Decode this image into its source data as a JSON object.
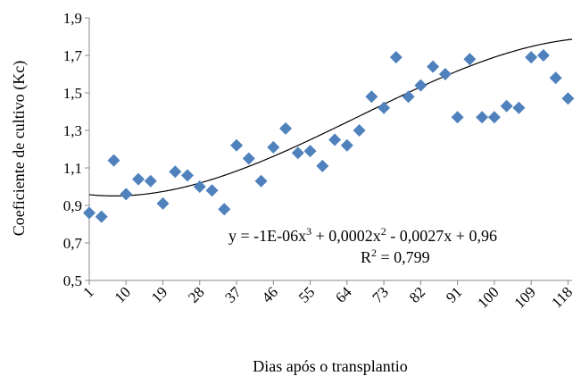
{
  "chart_data": {
    "type": "scatter",
    "title": "",
    "xlabel": "Dias após o transplantio",
    "ylabel": "Coeficiente de cultivo (Kc)",
    "x_ticks": [
      "1",
      "10",
      "19",
      "28",
      "37",
      "46",
      "55",
      "64",
      "73",
      "82",
      "91",
      "100",
      "109",
      "118"
    ],
    "y_ticks": [
      "0,5",
      "0,7",
      "0,9",
      "1,1",
      "1,3",
      "1,5",
      "1,7",
      "1,9"
    ],
    "xlim": [
      1,
      119
    ],
    "ylim": [
      0.5,
      1.9
    ],
    "grid": false,
    "marker": "diamond",
    "marker_color": "#4f81bd",
    "points": [
      {
        "x": 1,
        "y": 0.86
      },
      {
        "x": 4,
        "y": 0.84
      },
      {
        "x": 7,
        "y": 1.14
      },
      {
        "x": 10,
        "y": 0.96
      },
      {
        "x": 13,
        "y": 1.04
      },
      {
        "x": 16,
        "y": 1.03
      },
      {
        "x": 19,
        "y": 0.91
      },
      {
        "x": 22,
        "y": 1.08
      },
      {
        "x": 25,
        "y": 1.06
      },
      {
        "x": 28,
        "y": 1.0
      },
      {
        "x": 31,
        "y": 0.98
      },
      {
        "x": 34,
        "y": 0.88
      },
      {
        "x": 37,
        "y": 1.22
      },
      {
        "x": 40,
        "y": 1.15
      },
      {
        "x": 43,
        "y": 1.03
      },
      {
        "x": 46,
        "y": 1.21
      },
      {
        "x": 49,
        "y": 1.31
      },
      {
        "x": 52,
        "y": 1.18
      },
      {
        "x": 55,
        "y": 1.19
      },
      {
        "x": 58,
        "y": 1.11
      },
      {
        "x": 61,
        "y": 1.25
      },
      {
        "x": 64,
        "y": 1.22
      },
      {
        "x": 67,
        "y": 1.3
      },
      {
        "x": 70,
        "y": 1.48
      },
      {
        "x": 73,
        "y": 1.42
      },
      {
        "x": 76,
        "y": 1.69
      },
      {
        "x": 79,
        "y": 1.48
      },
      {
        "x": 82,
        "y": 1.54
      },
      {
        "x": 85,
        "y": 1.64
      },
      {
        "x": 88,
        "y": 1.6
      },
      {
        "x": 91,
        "y": 1.37
      },
      {
        "x": 94,
        "y": 1.68
      },
      {
        "x": 97,
        "y": 1.37
      },
      {
        "x": 100,
        "y": 1.37
      },
      {
        "x": 103,
        "y": 1.43
      },
      {
        "x": 106,
        "y": 1.42
      },
      {
        "x": 109,
        "y": 1.69
      },
      {
        "x": 112,
        "y": 1.7
      },
      {
        "x": 115,
        "y": 1.58
      },
      {
        "x": 118,
        "y": 1.47
      }
    ],
    "trendline": {
      "type": "polynomial-3",
      "coefficients": [
        -1e-06,
        0.0002,
        -0.0027,
        0.96
      ],
      "equation_parts": [
        "y = -1E-06x",
        "3",
        " + 0,0002x",
        "2",
        " - 0,0027x + 0,96"
      ],
      "r2_parts": [
        "R",
        "2",
        " = 0,799"
      ]
    }
  }
}
